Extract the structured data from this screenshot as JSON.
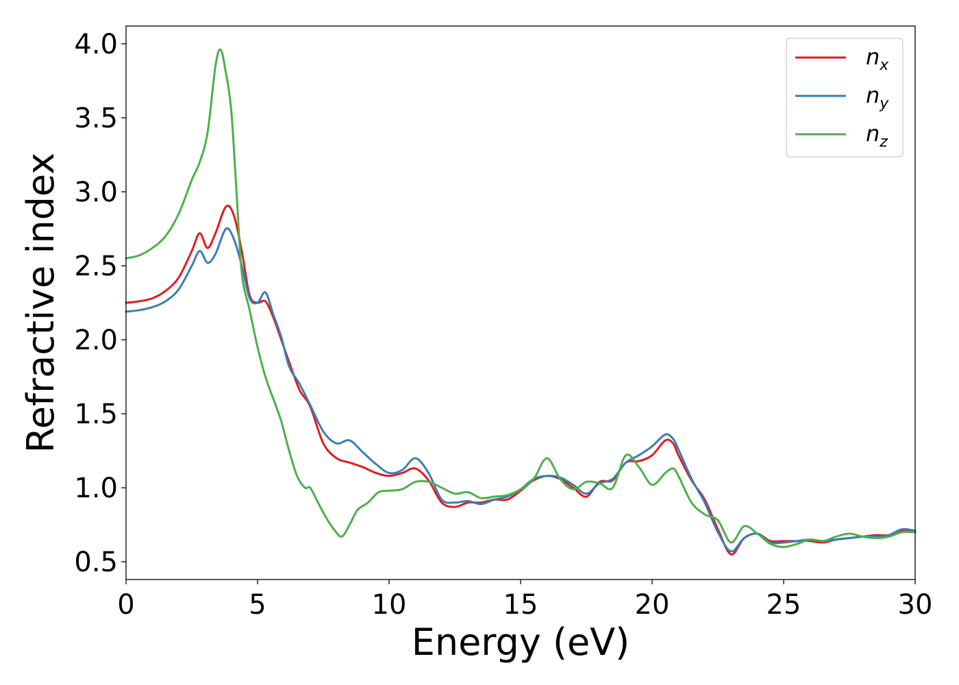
{
  "chart_data": {
    "type": "line",
    "xlabel": "Energy (eV)",
    "ylabel": "Refractive index",
    "xlim": [
      0,
      30
    ],
    "ylim": [
      0.38,
      4.12
    ],
    "xticks": [
      0,
      5,
      10,
      15,
      20,
      25,
      30
    ],
    "xtick_labels": [
      "0",
      "5",
      "10",
      "15",
      "20",
      "25",
      "30"
    ],
    "yticks": [
      0.5,
      1.0,
      1.5,
      2.0,
      2.5,
      3.0,
      3.5,
      4.0
    ],
    "ytick_labels": [
      "0.5",
      "1.0",
      "1.5",
      "2.0",
      "2.5",
      "3.0",
      "3.5",
      "4.0"
    ],
    "grid": false,
    "legend_position": "top-right",
    "series": [
      {
        "name": "n_x",
        "label_base": "n",
        "label_sub": "x",
        "color": "#e41a1c",
        "x": [
          0,
          0.5,
          1,
          1.5,
          2,
          2.5,
          2.8,
          3.1,
          3.4,
          3.8,
          4.1,
          4.4,
          4.7,
          5.0,
          5.3,
          5.6,
          5.9,
          6.2,
          6.6,
          7.0,
          7.5,
          8.0,
          8.5,
          9.0,
          9.5,
          10.0,
          10.5,
          11.0,
          11.5,
          12.0,
          12.5,
          13.0,
          13.5,
          14.0,
          14.5,
          15.0,
          15.5,
          16.0,
          16.5,
          17.0,
          17.5,
          18.0,
          18.5,
          19.0,
          19.5,
          20.0,
          20.5,
          20.8,
          21.0,
          21.5,
          22.0,
          22.5,
          23.0,
          23.5,
          24.0,
          24.5,
          25.0,
          25.5,
          26.0,
          26.5,
          27.0,
          27.5,
          28.0,
          28.5,
          29.0,
          29.5,
          30.0
        ],
        "y": [
          2.25,
          2.26,
          2.28,
          2.33,
          2.42,
          2.6,
          2.72,
          2.62,
          2.72,
          2.9,
          2.84,
          2.6,
          2.3,
          2.25,
          2.26,
          2.15,
          2.0,
          1.85,
          1.66,
          1.55,
          1.3,
          1.2,
          1.17,
          1.14,
          1.1,
          1.08,
          1.1,
          1.13,
          1.05,
          0.9,
          0.87,
          0.9,
          0.9,
          0.92,
          0.92,
          0.98,
          1.05,
          1.08,
          1.06,
          1.0,
          0.94,
          1.04,
          1.05,
          1.17,
          1.18,
          1.22,
          1.32,
          1.3,
          1.22,
          1.05,
          0.92,
          0.72,
          0.55,
          0.66,
          0.69,
          0.64,
          0.64,
          0.64,
          0.64,
          0.63,
          0.65,
          0.66,
          0.67,
          0.68,
          0.68,
          0.71,
          0.7
        ]
      },
      {
        "name": "n_y",
        "label_base": "n",
        "label_sub": "y",
        "color": "#377eb8",
        "x": [
          0,
          0.5,
          1,
          1.5,
          2,
          2.5,
          2.8,
          3.1,
          3.4,
          3.8,
          4.1,
          4.4,
          4.7,
          5.0,
          5.3,
          5.6,
          5.9,
          6.2,
          6.6,
          7.0,
          7.5,
          8.0,
          8.5,
          9.0,
          9.5,
          10.0,
          10.5,
          11.0,
          11.5,
          12.0,
          12.5,
          13.0,
          13.5,
          14.0,
          14.5,
          15.0,
          15.5,
          16.0,
          16.5,
          17.0,
          17.5,
          18.0,
          18.5,
          19.0,
          19.5,
          20.0,
          20.5,
          20.8,
          21.0,
          21.5,
          22.0,
          22.5,
          23.0,
          23.5,
          24.0,
          24.5,
          25.0,
          25.5,
          26.0,
          26.5,
          27.0,
          27.5,
          28.0,
          28.5,
          29.0,
          29.5,
          30.0
        ],
        "y": [
          2.19,
          2.2,
          2.22,
          2.26,
          2.34,
          2.5,
          2.6,
          2.52,
          2.58,
          2.75,
          2.68,
          2.5,
          2.28,
          2.25,
          2.32,
          2.17,
          2.02,
          1.82,
          1.7,
          1.56,
          1.38,
          1.3,
          1.32,
          1.24,
          1.16,
          1.1,
          1.12,
          1.2,
          1.1,
          0.92,
          0.9,
          0.91,
          0.89,
          0.92,
          0.94,
          0.99,
          1.06,
          1.08,
          1.07,
          1.02,
          0.96,
          1.03,
          1.06,
          1.17,
          1.22,
          1.28,
          1.36,
          1.33,
          1.26,
          1.06,
          0.9,
          0.7,
          0.57,
          0.66,
          0.69,
          0.63,
          0.63,
          0.64,
          0.65,
          0.64,
          0.65,
          0.66,
          0.67,
          0.67,
          0.68,
          0.72,
          0.71
        ]
      },
      {
        "name": "n_z",
        "label_base": "n",
        "label_sub": "z",
        "color": "#4daf4a",
        "x": [
          0,
          0.5,
          1,
          1.5,
          2,
          2.5,
          2.8,
          3.1,
          3.4,
          3.6,
          3.8,
          4.0,
          4.2,
          4.4,
          4.7,
          5.0,
          5.3,
          5.6,
          5.9,
          6.2,
          6.5,
          6.8,
          7.0,
          7.3,
          7.6,
          7.9,
          8.2,
          8.5,
          8.8,
          9.2,
          9.6,
          10.0,
          10.5,
          11.0,
          11.5,
          12.0,
          12.5,
          13.0,
          13.5,
          14.0,
          14.5,
          15.0,
          15.5,
          16.0,
          16.5,
          17.0,
          17.5,
          18.0,
          18.5,
          19.0,
          19.5,
          20.0,
          20.5,
          20.8,
          21.0,
          21.5,
          22.0,
          22.5,
          23.0,
          23.5,
          24.0,
          24.5,
          25.0,
          25.5,
          26.0,
          26.5,
          27.0,
          27.5,
          28.0,
          28.5,
          29.0,
          29.5,
          30.0
        ],
        "y": [
          2.55,
          2.57,
          2.62,
          2.7,
          2.85,
          3.08,
          3.2,
          3.4,
          3.85,
          3.96,
          3.8,
          3.55,
          3.0,
          2.45,
          2.2,
          1.95,
          1.75,
          1.6,
          1.45,
          1.25,
          1.08,
          1.0,
          1.0,
          0.9,
          0.8,
          0.72,
          0.67,
          0.75,
          0.85,
          0.9,
          0.97,
          0.98,
          0.99,
          1.04,
          1.04,
          1.0,
          0.96,
          0.97,
          0.93,
          0.94,
          0.95,
          0.99,
          1.06,
          1.2,
          1.06,
          0.99,
          1.04,
          1.03,
          1.0,
          1.22,
          1.14,
          1.02,
          1.1,
          1.13,
          1.08,
          0.9,
          0.82,
          0.78,
          0.63,
          0.74,
          0.69,
          0.62,
          0.6,
          0.62,
          0.65,
          0.64,
          0.67,
          0.69,
          0.67,
          0.66,
          0.67,
          0.7,
          0.7
        ]
      }
    ]
  }
}
